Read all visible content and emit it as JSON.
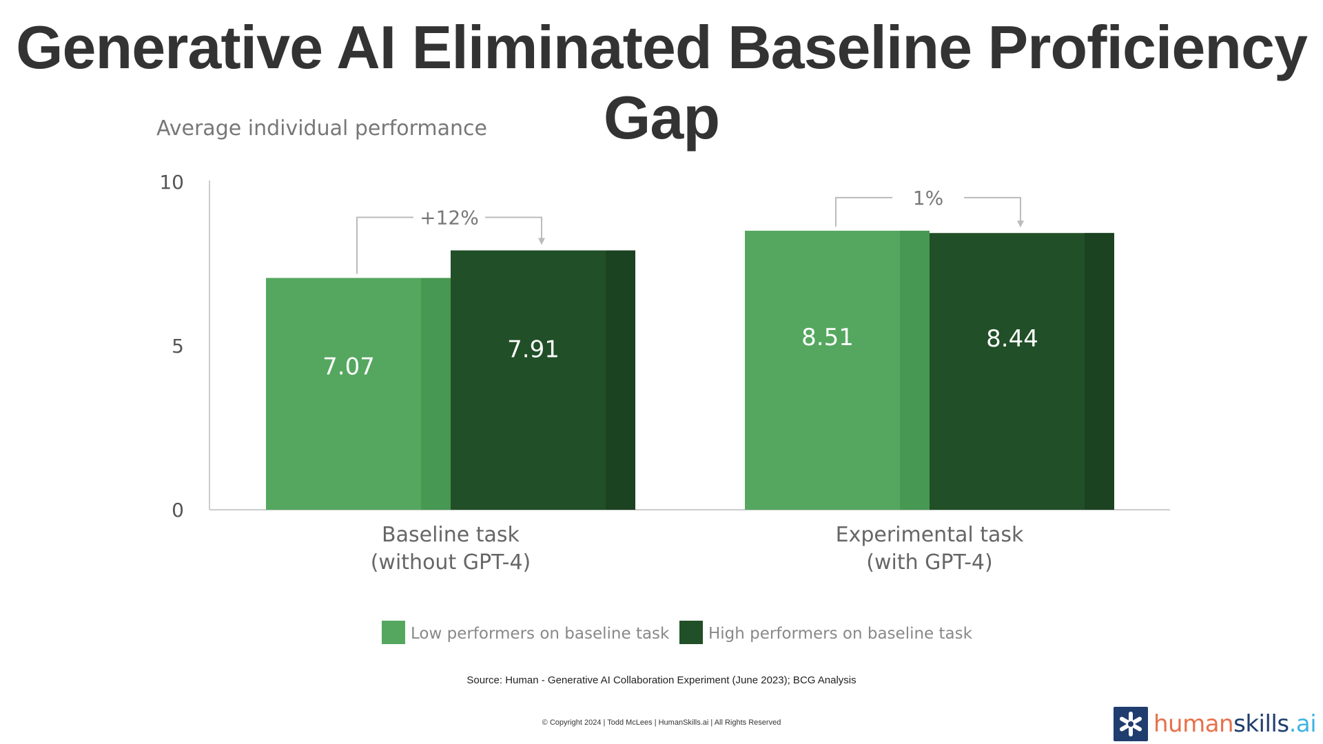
{
  "title": "Generative AI Eliminated Baseline Proficiency Gap",
  "chart_data": {
    "type": "bar",
    "ylabel": "Average individual performance",
    "ylim": [
      0,
      10
    ],
    "yticks": [
      "10",
      "5",
      "0"
    ],
    "yticks_values": [
      10,
      5,
      0
    ],
    "categories": [
      "Baseline task\n(without GPT-4)",
      "Experimental task\n(with GPT-4)"
    ],
    "category_lines": [
      [
        "Baseline task",
        "(without GPT-4)"
      ],
      [
        "Experimental task",
        "(with GPT-4)"
      ]
    ],
    "series": [
      {
        "name": "Low performers on baseline task",
        "values": [
          7.07,
          8.51
        ],
        "labels": [
          "7.07",
          "8.51"
        ],
        "color": "#55a760",
        "shade": "#479852"
      },
      {
        "name": "High performers on baseline task",
        "values": [
          7.91,
          8.44
        ],
        "labels": [
          "7.91",
          "8.44"
        ],
        "color": "#214f27",
        "shade": "#1b4221"
      }
    ],
    "annotations": [
      "+12%",
      "1%"
    ],
    "legend_position": "bottom-center",
    "grid": false
  },
  "source": "Source: Human - Generative AI Collaboration Experiment (June 2023); BCG Analysis",
  "copyright": "© Copyright 2024  |  Todd McLees  |  HumanSkills.ai | All Rights Reserved",
  "logo": {
    "human": "human",
    "skills": "skills",
    "ai": ".ai",
    "icon": "asterisk-icon",
    "colors": {
      "human": "#e8704a",
      "skills": "#1f3d6e",
      "ai": "#3fb4e0",
      "mark": "#1f3d6e"
    }
  }
}
